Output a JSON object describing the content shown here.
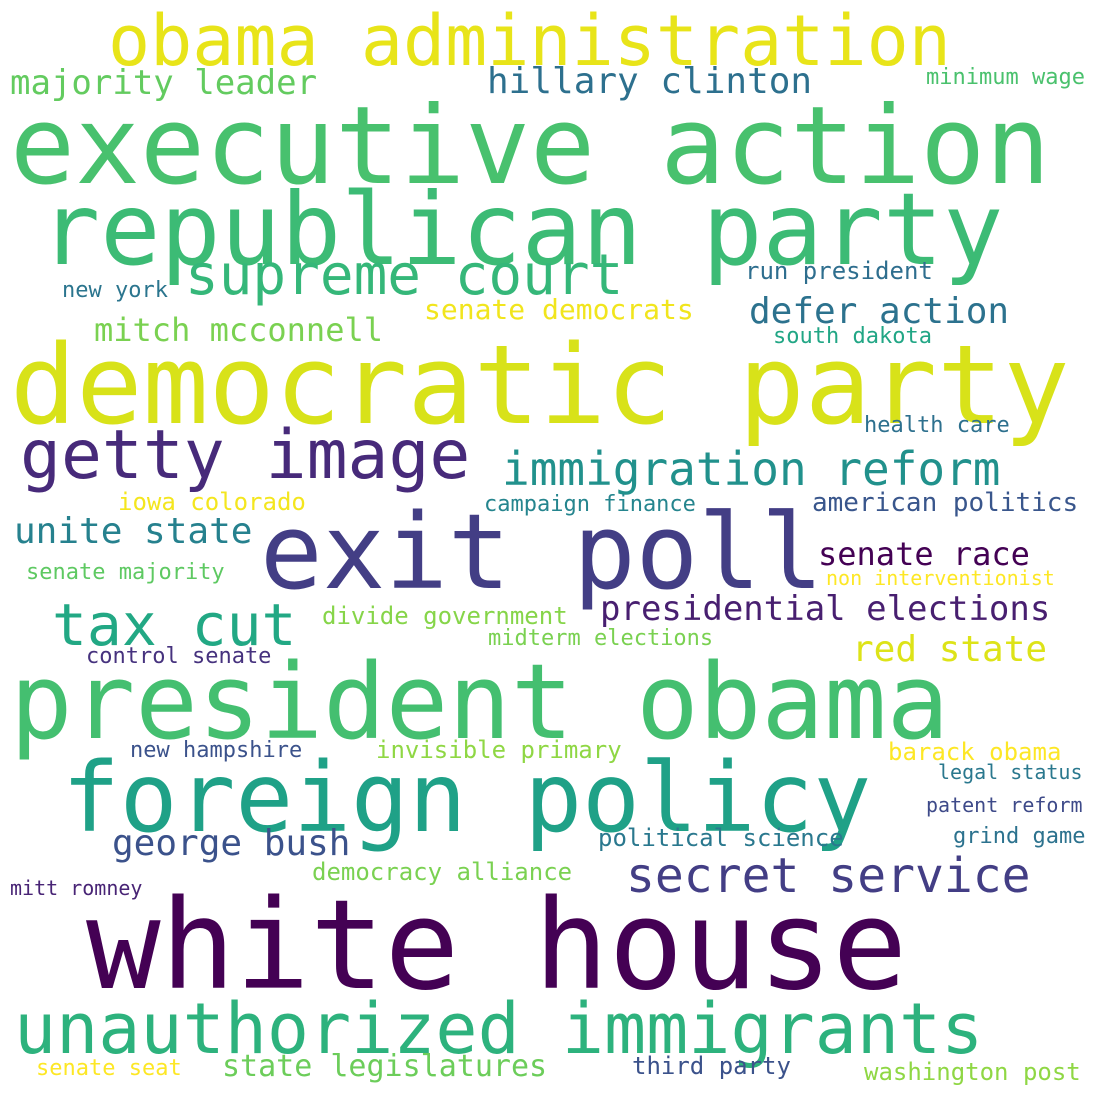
{
  "words": [
    {
      "text": "obama administration",
      "color": "#e8e419"
    },
    {
      "text": "executive action",
      "color": "#48c16e"
    },
    {
      "text": "republican party",
      "color": "#3cbb75"
    },
    {
      "text": "majority leader",
      "color": "#63cb5f"
    },
    {
      "text": "hillary clinton",
      "color": "#2d708e"
    },
    {
      "text": "minimum wage",
      "color": "#4ac16d"
    },
    {
      "text": "supreme court",
      "color": "#35b779"
    },
    {
      "text": "run president",
      "color": "#2e6e8e"
    },
    {
      "text": "new york",
      "color": "#2b758e"
    },
    {
      "text": "senate democrats",
      "color": "#f1e51d"
    },
    {
      "text": "defer action",
      "color": "#2c728e"
    },
    {
      "text": "mitch mcconnell",
      "color": "#7ad151"
    },
    {
      "text": "south dakota",
      "color": "#21a685"
    },
    {
      "text": "democratic party",
      "color": "#d8e219"
    },
    {
      "text": "health care",
      "color": "#2d708e"
    },
    {
      "text": "getty image",
      "color": "#472a7a"
    },
    {
      "text": "immigration reform",
      "color": "#21918c"
    },
    {
      "text": "iowa colorado",
      "color": "#f4e61e"
    },
    {
      "text": "campaign finance",
      "color": "#25858e"
    },
    {
      "text": "american politics",
      "color": "#39568c"
    },
    {
      "text": "unite state",
      "color": "#26818e"
    },
    {
      "text": "exit poll",
      "color": "#433e85"
    },
    {
      "text": "senate race",
      "color": "#440154"
    },
    {
      "text": "senate majority",
      "color": "#5ec962"
    },
    {
      "text": "non interventionist",
      "color": "#fde725"
    },
    {
      "text": "tax cut",
      "color": "#22a884"
    },
    {
      "text": "divide government",
      "color": "#86d549"
    },
    {
      "text": "presidential elections",
      "color": "#481f70"
    },
    {
      "text": "midterm elections",
      "color": "#7ad151"
    },
    {
      "text": "red state",
      "color": "#dde318"
    },
    {
      "text": "control senate",
      "color": "#46327e"
    },
    {
      "text": "president obama",
      "color": "#44bf70"
    },
    {
      "text": "new hampshire",
      "color": "#3b528b"
    },
    {
      "text": "invisible primary",
      "color": "#8fd744"
    },
    {
      "text": "barack obama",
      "color": "#fde725"
    },
    {
      "text": "foreign policy",
      "color": "#1fa187"
    },
    {
      "text": "legal status",
      "color": "#2a788e"
    },
    {
      "text": "patent reform",
      "color": "#3e4a89"
    },
    {
      "text": "political science",
      "color": "#2a788e"
    },
    {
      "text": "grind game",
      "color": "#2c728e"
    },
    {
      "text": "george bush",
      "color": "#3b528b"
    },
    {
      "text": "democracy alliance",
      "color": "#7ad151"
    },
    {
      "text": "secret service",
      "color": "#433e85"
    },
    {
      "text": "mitt romney",
      "color": "#482475"
    },
    {
      "text": "white house",
      "color": "#440154"
    },
    {
      "text": "unauthorized immigrants",
      "color": "#2db27d"
    },
    {
      "text": "senate seat",
      "color": "#fde725"
    },
    {
      "text": "state legislatures",
      "color": "#6ccd5a"
    },
    {
      "text": "third party",
      "color": "#3b528b"
    },
    {
      "text": "washington post",
      "color": "#8fd744"
    }
  ]
}
